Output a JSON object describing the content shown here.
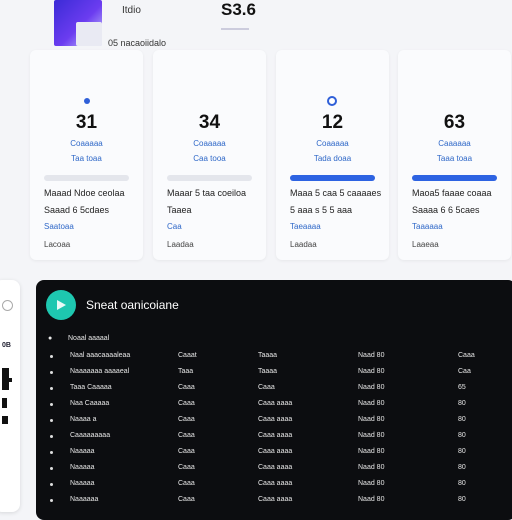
{
  "header": {
    "title": "Itdio",
    "subtitle": "05 nacaoiidalo",
    "value": "S3.6"
  },
  "cards": [
    {
      "marker": "dot",
      "value": "31",
      "label1": "Coaaaaa",
      "label2": "Taa toaa",
      "progress": 0,
      "line1": "Maaad Ndoe ceolaa",
      "line2": "Saaad 6 5cdaes",
      "line3": "Saatoaa",
      "line4": "Lacoaa"
    },
    {
      "marker": "none",
      "value": "34",
      "label1": "Coaaaaa",
      "label2": "Caa tooa",
      "progress": 0,
      "line1": "Maaar 5 taa coeiloa",
      "line2": "Taaea",
      "line3": "Caa",
      "line4": "Laadaa"
    },
    {
      "marker": "ring",
      "value": "12",
      "label1": "Coaaaaa",
      "label2": "Tada doaa",
      "progress": 1,
      "line1": "Maaa 5 caa 5 caaaaes",
      "line2": "5 aaa s 5 5 aaa",
      "line3": "Taeaaaa",
      "line4": "Laadaa"
    },
    {
      "marker": "none",
      "value": "63",
      "label1": "Caaaaaa",
      "label2": "Taaa toaa",
      "progress": 1,
      "line1": "Maoa5 faaae coaaa",
      "line2": "Saaaa 6 6 5caes",
      "line3": "Taaaaaa",
      "line4": "Laaeaa"
    }
  ],
  "side": {
    "code": "0B"
  },
  "panel": {
    "title": "Sneat oanicoiane",
    "header_label": "Noaal aaaaal",
    "rows": [
      {
        "name": "Naal aaacaaaaleaa",
        "c1": "Caaat",
        "c2": "Taaaa",
        "c3": "Naad  80",
        "c4": "Caaa"
      },
      {
        "name": "Naaaaaaa aaaaeal",
        "c1": "Taaa",
        "c2": "Taaaa",
        "c3": "Naad  80",
        "c4": "Caa"
      },
      {
        "name": "Taaa Caaaaa",
        "c1": "Caaa",
        "c2": "Caaa",
        "c3": "Naad  80",
        "c4": "65"
      },
      {
        "name": "Naa Caaaaa",
        "c1": "Caaa",
        "c2": "Caaa aaaa",
        "c3": "Naad  80",
        "c4": "80"
      },
      {
        "name": "Naaaa a",
        "c1": "Caaa",
        "c2": "Caaa aaaa",
        "c3": "Naad  80",
        "c4": "80"
      },
      {
        "name": "Caaaaaaaaa",
        "c1": "Caaa",
        "c2": "Caaa aaaa",
        "c3": "Naad  80",
        "c4": "80"
      },
      {
        "name": "Naaaaa",
        "c1": "Caaa",
        "c2": "Caaa aaaa",
        "c3": "Naad  80",
        "c4": "80"
      },
      {
        "name": "Naaaaa",
        "c1": "Caaa",
        "c2": "Caaa aaaa",
        "c3": "Naad  80",
        "c4": "80"
      },
      {
        "name": "Naaaaa",
        "c1": "Caaa",
        "c2": "Caaa aaaa",
        "c3": "Naad  80",
        "c4": "80"
      },
      {
        "name": "Naaaaaa",
        "c1": "Caaa",
        "c2": "Caaa aaaa",
        "c3": "Naad  80",
        "c4": "80"
      }
    ]
  },
  "colors": {
    "accent": "#2d63e2",
    "panel_bg": "#0c0d10",
    "logo": "#1ec7b0"
  }
}
